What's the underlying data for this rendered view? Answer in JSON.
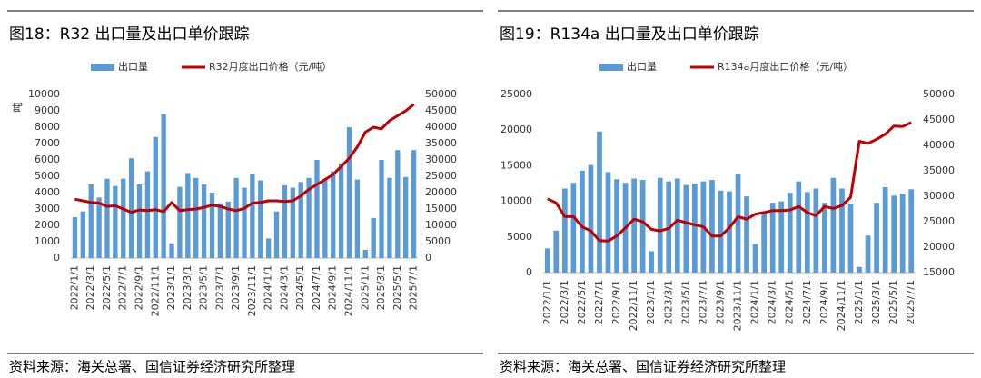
{
  "chart_data": [
    {
      "type": "combo",
      "title": "图18：R32 出口量及出口单价跟踪",
      "source": "资料来源：海关总署、国信证券经济研究所整理",
      "ylabel": "吨",
      "categories": [
        "2022/1/1",
        null,
        "2022/3/1",
        null,
        "2022/5/1",
        null,
        "2022/7/1",
        null,
        "2022/9/1",
        null,
        "2022/11/1",
        null,
        "2023/1/1",
        null,
        "2023/3/1",
        null,
        "2023/5/1",
        null,
        "2023/7/1",
        null,
        "2023/9/1",
        null,
        "2023/11/1",
        null,
        "2024/1/1",
        null,
        "2024/3/1",
        null,
        "2024/5/1",
        null,
        "2024/7/1",
        null,
        "2024/9/1",
        null,
        "2024/11/1",
        null,
        "2025/1/1",
        null,
        "2025/3/1",
        null,
        "2025/5/1",
        null,
        "2025/7/1"
      ],
      "ylim": [
        0,
        10000
      ],
      "yticks": [
        0,
        1000,
        2000,
        3000,
        4000,
        5000,
        6000,
        7000,
        8000,
        9000,
        10000
      ],
      "y2lim": [
        0,
        50000
      ],
      "y2ticks": [
        0,
        5000,
        10000,
        15000,
        20000,
        25000,
        30000,
        35000,
        40000,
        45000,
        50000
      ],
      "series": [
        {
          "name": "出口量",
          "color": "#5b9bd5",
          "kind": "bar",
          "values": [
            2500,
            2850,
            4500,
            3700,
            4850,
            4400,
            4850,
            6100,
            4500,
            5300,
            7400,
            8800,
            900,
            4350,
            5200,
            4900,
            4500,
            4000,
            3350,
            3450,
            4900,
            4300,
            5150,
            4750,
            1200,
            2850,
            4450,
            4300,
            4650,
            4900,
            6000,
            4800,
            5300,
            5800,
            8000,
            4800,
            500,
            2450,
            6000,
            4900,
            6600,
            4950,
            6600
          ]
        },
        {
          "name": "R32月度出口价格（元/吨）",
          "color": "#c00000",
          "kind": "line",
          "axis": "y2",
          "values": [
            18000,
            17500,
            17000,
            16800,
            15800,
            16000,
            15000,
            14000,
            14700,
            14500,
            14800,
            14200,
            17000,
            14500,
            14800,
            15000,
            15500,
            16200,
            15800,
            15000,
            14500,
            15200,
            16800,
            17000,
            17500,
            17500,
            17300,
            17500,
            19000,
            21000,
            22500,
            24000,
            25500,
            28000,
            30500,
            34000,
            38500,
            40000,
            39500,
            42000,
            43500,
            45000,
            47000
          ]
        }
      ]
    },
    {
      "type": "combo",
      "title": "图19：R134a 出口量及出口单价跟踪",
      "source": "资料来源：海关总署、国信证券经济研究所整理",
      "categories": [
        "2022/1/1",
        null,
        "2022/3/1",
        null,
        "2022/5/1",
        null,
        "2022/7/1",
        null,
        "2022/9/1",
        null,
        "2022/11/1",
        null,
        "2023/1/1",
        null,
        "2023/3/1",
        null,
        "2023/5/1",
        null,
        "2023/7/1",
        null,
        "2023/9/1",
        null,
        "2023/11/1",
        null,
        "2024/1/1",
        null,
        "2024/3/1",
        null,
        "2024/5/1",
        null,
        "2024/7/1",
        null,
        "2024/9/1",
        null,
        "2024/11/1",
        null,
        "2025/1/1",
        null,
        "2025/3/1",
        null,
        "2025/5/1",
        null,
        "2025/7/1"
      ],
      "ylim": [
        0,
        25000
      ],
      "yticks": [
        0,
        5000,
        10000,
        15000,
        20000,
        25000
      ],
      "y2lim": [
        15000,
        50000
      ],
      "y2ticks": [
        15000,
        20000,
        25000,
        30000,
        35000,
        40000,
        45000,
        50000
      ],
      "series": [
        {
          "name": "出口量",
          "color": "#5b9bd5",
          "kind": "bar",
          "values": [
            3400,
            5900,
            11800,
            12600,
            14300,
            15100,
            19800,
            14100,
            13100,
            12600,
            13200,
            13000,
            3000,
            13300,
            12800,
            13200,
            12300,
            12500,
            12800,
            13000,
            11500,
            11400,
            13800,
            10700,
            4000,
            8300,
            9800,
            10000,
            11200,
            12800,
            11300,
            11800,
            9800,
            13300,
            11800,
            9700,
            800,
            5200,
            9800,
            12000,
            10800,
            11100,
            11700
          ]
        },
        {
          "name": "R134a月度出口价格（元/吨）",
          "color": "#c00000",
          "kind": "line",
          "axis": "y2",
          "values": [
            29500,
            28700,
            26000,
            26000,
            24000,
            23200,
            21300,
            21200,
            22200,
            23800,
            25500,
            25000,
            23500,
            23200,
            23700,
            25300,
            24800,
            24400,
            24000,
            22200,
            22200,
            23800,
            26000,
            25500,
            26500,
            26800,
            27200,
            27200,
            27300,
            28000,
            26800,
            26200,
            28000,
            27600,
            28200,
            29800,
            40800,
            40400,
            41200,
            42200,
            43800,
            43700,
            44500
          ]
        }
      ]
    }
  ]
}
